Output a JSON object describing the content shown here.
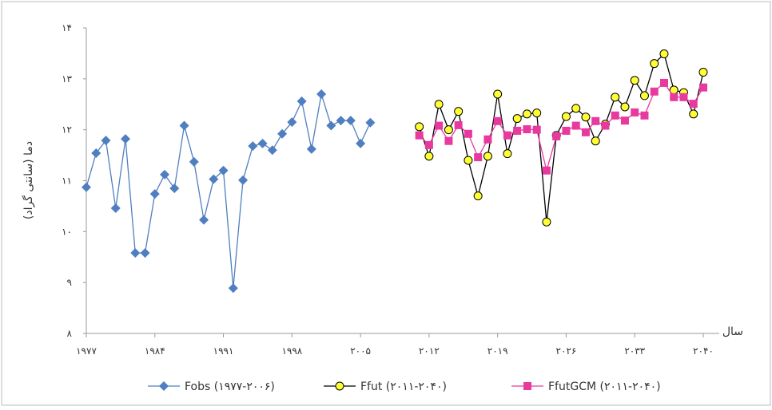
{
  "chart_data": {
    "type": "line",
    "ylabel": "دما (سانتی گراد)",
    "xlabel": "سال",
    "xlim": [
      1977,
      2040
    ],
    "xticks": [
      {
        "value": 1977,
        "label": "۱۹۷۷"
      },
      {
        "value": 1984,
        "label": "۱۹۸۴"
      },
      {
        "value": 1991,
        "label": "۱۹۹۱"
      },
      {
        "value": 1998,
        "label": "۱۹۹۸"
      },
      {
        "value": 2005,
        "label": "۲۰۰۵"
      },
      {
        "value": 2012,
        "label": "۲۰۱۲"
      },
      {
        "value": 2019,
        "label": "۲۰۱۹"
      },
      {
        "value": 2026,
        "label": "۲۰۲۶"
      },
      {
        "value": 2033,
        "label": "۲۰۳۳"
      },
      {
        "value": 2040,
        "label": "۲۰۴۰"
      }
    ],
    "ylim": [
      8,
      14
    ],
    "yticks": [
      {
        "value": 8,
        "label": "۸"
      },
      {
        "value": 9,
        "label": "۹"
      },
      {
        "value": 10,
        "label": "۱۰"
      },
      {
        "value": 11,
        "label": "۱۱"
      },
      {
        "value": 12,
        "label": "۱۲"
      },
      {
        "value": 13,
        "label": "۱۳"
      },
      {
        "value": 14,
        "label": "۱۴"
      }
    ],
    "series": [
      {
        "name": "Fobs (۱۹۷۷-۲۰۰۶)",
        "color": "#4f7fc0",
        "marker": "diamond",
        "x": [
          1977,
          1978,
          1979,
          1980,
          1981,
          1982,
          1983,
          1984,
          1985,
          1986,
          1987,
          1988,
          1989,
          1990,
          1991,
          1992,
          1993,
          1994,
          1995,
          1996,
          1997,
          1998,
          1999,
          2000,
          2001,
          2002,
          2003,
          2004,
          2005,
          2006
        ],
        "values": [
          10.87,
          11.54,
          11.79,
          10.46,
          11.82,
          9.58,
          9.58,
          10.74,
          11.12,
          10.85,
          12.08,
          11.37,
          10.23,
          11.03,
          11.2,
          8.89,
          11.01,
          11.68,
          11.73,
          11.6,
          11.92,
          12.15,
          12.56,
          11.62,
          12.7,
          12.08,
          12.18,
          12.18,
          11.73,
          12.14
        ]
      },
      {
        "name": "Ffut (۲۰۱۱-۲۰۴۰)",
        "color": "#000000",
        "marker": "circle",
        "x": [
          2011,
          2012,
          2013,
          2014,
          2015,
          2016,
          2017,
          2018,
          2019,
          2020,
          2021,
          2022,
          2023,
          2024,
          2025,
          2026,
          2027,
          2028,
          2029,
          2030,
          2031,
          2032,
          2033,
          2034,
          2035,
          2036,
          2037,
          2038,
          2039,
          2040
        ],
        "values": [
          12.06,
          11.48,
          12.5,
          12.0,
          12.36,
          11.4,
          10.7,
          11.48,
          12.7,
          11.53,
          12.22,
          12.31,
          12.33,
          10.19,
          11.89,
          12.26,
          12.42,
          12.25,
          11.78,
          12.11,
          12.64,
          12.45,
          12.97,
          12.67,
          13.3,
          13.49,
          12.78,
          12.73,
          12.31,
          13.13
        ]
      },
      {
        "name": "FfutGCM (۲۰۱۱-۲۰۴۰)",
        "color": "#e8399e",
        "marker": "square",
        "x": [
          2011,
          2012,
          2013,
          2014,
          2015,
          2016,
          2017,
          2018,
          2019,
          2020,
          2021,
          2022,
          2023,
          2024,
          2025,
          2026,
          2027,
          2028,
          2029,
          2030,
          2031,
          2032,
          2033,
          2034,
          2035,
          2036,
          2037,
          2038,
          2039,
          2040
        ],
        "values": [
          11.89,
          11.7,
          12.08,
          11.78,
          12.09,
          11.92,
          11.46,
          11.81,
          12.17,
          11.89,
          11.98,
          12.01,
          12.0,
          11.2,
          11.87,
          11.98,
          12.08,
          11.95,
          12.17,
          12.08,
          12.28,
          12.18,
          12.34,
          12.28,
          12.75,
          12.92,
          12.64,
          12.64,
          12.51,
          12.83
        ]
      }
    ]
  }
}
